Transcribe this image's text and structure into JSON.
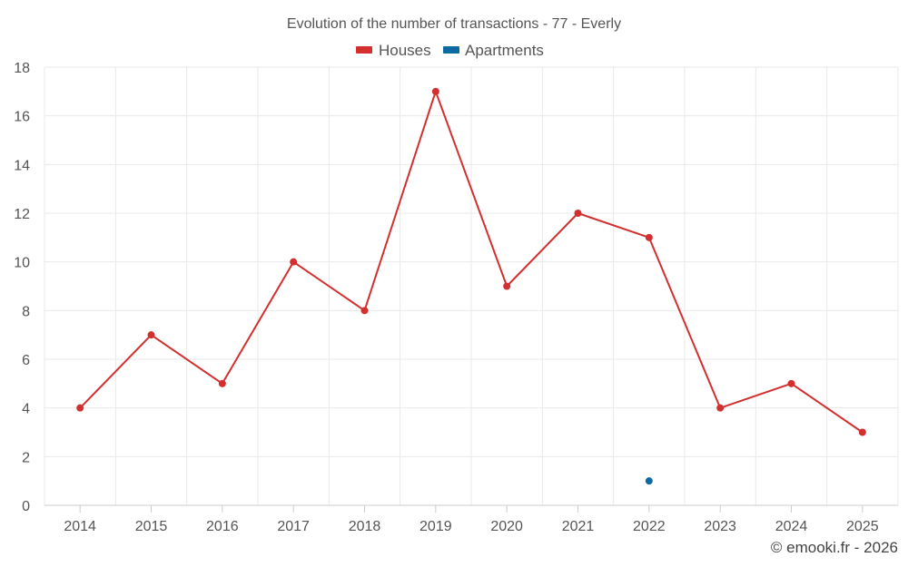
{
  "chart_data": {
    "type": "line",
    "title": "Evolution of the number of transactions - 77 - Everly",
    "categories": [
      "2014",
      "2015",
      "2016",
      "2017",
      "2018",
      "2019",
      "2020",
      "2021",
      "2022",
      "2023",
      "2024",
      "2025"
    ],
    "series": [
      {
        "name": "Houses",
        "color": "#d32f2f",
        "values": [
          4,
          7,
          5,
          10,
          8,
          17,
          9,
          12,
          11,
          4,
          5,
          3
        ]
      },
      {
        "name": "Apartments",
        "color": "#0b6aa2",
        "values": [
          null,
          null,
          null,
          null,
          null,
          null,
          null,
          null,
          1,
          null,
          null,
          null
        ]
      }
    ],
    "ylim": [
      0,
      18
    ],
    "yticks": [
      "0",
      "2",
      "4",
      "6",
      "8",
      "10",
      "12",
      "14",
      "16",
      "18"
    ],
    "xlabel": "",
    "ylabel": "",
    "grid": true,
    "legend_position": "top-center"
  },
  "footer": "© emooki.fr - 2026"
}
